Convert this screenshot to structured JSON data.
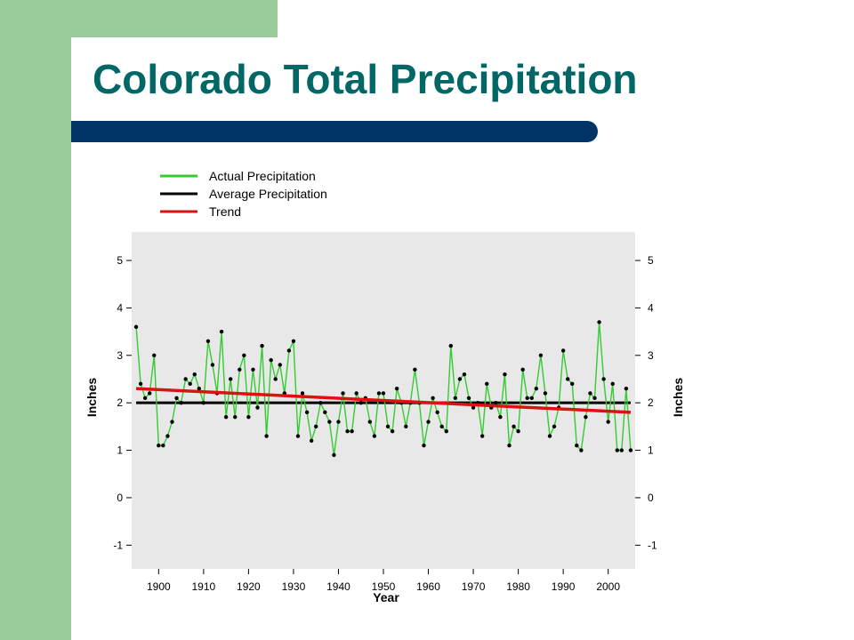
{
  "slide": {
    "title": "Colorado Total Precipitation"
  },
  "colors": {
    "actual": "#33cc33",
    "average": "#000000",
    "trend": "#dd1111",
    "plot_background": "#e8e8e8",
    "title": "#006666",
    "bar": "#003366",
    "side_band": "#99cc99"
  },
  "chart_data": {
    "type": "line",
    "xlabel": "Year",
    "ylabel": "Inches",
    "ylabel_right": "Inches",
    "xlim": [
      1894,
      2006
    ],
    "ylim": [
      -1.5,
      5.6
    ],
    "x_ticks": [
      1900,
      1910,
      1920,
      1930,
      1940,
      1950,
      1960,
      1970,
      1980,
      1990,
      2000
    ],
    "y_ticks": [
      -1,
      0,
      1,
      2,
      3,
      4,
      5
    ],
    "grid": false,
    "legend_position": "top-left",
    "legend": [
      "Actual Precipitation",
      "Average Precipitation",
      "Trend"
    ],
    "series": [
      {
        "name": "Actual Precipitation",
        "x": [
          1895,
          1896,
          1897,
          1898,
          1899,
          1900,
          1901,
          1902,
          1903,
          1904,
          1905,
          1906,
          1907,
          1908,
          1909,
          1910,
          1911,
          1912,
          1913,
          1914,
          1915,
          1916,
          1917,
          1918,
          1919,
          1920,
          1921,
          1922,
          1923,
          1924,
          1925,
          1926,
          1927,
          1928,
          1929,
          1930,
          1931,
          1932,
          1933,
          1934,
          1935,
          1936,
          1937,
          1938,
          1939,
          1940,
          1941,
          1942,
          1943,
          1944,
          1945,
          1946,
          1947,
          1948,
          1949,
          1950,
          1951,
          1952,
          1953,
          1954,
          1955,
          1956,
          1957,
          1958,
          1959,
          1960,
          1961,
          1962,
          1963,
          1964,
          1965,
          1966,
          1967,
          1968,
          1969,
          1970,
          1971,
          1972,
          1973,
          1974,
          1975,
          1976,
          1977,
          1978,
          1979,
          1980,
          1981,
          1982,
          1983,
          1984,
          1985,
          1986,
          1987,
          1988,
          1989,
          1990,
          1991,
          1992,
          1993,
          1994,
          1995,
          1996,
          1997,
          1998,
          1999,
          2000,
          2001,
          2002,
          2003,
          2004,
          2005
        ],
        "values": [
          3.6,
          2.4,
          2.1,
          2.2,
          3.0,
          1.1,
          1.1,
          1.3,
          1.6,
          2.1,
          2.0,
          2.5,
          2.4,
          2.6,
          2.3,
          2.0,
          3.3,
          2.8,
          2.2,
          3.5,
          1.7,
          2.5,
          1.7,
          2.7,
          3.0,
          1.7,
          2.7,
          1.9,
          3.2,
          1.3,
          2.9,
          2.5,
          2.8,
          2.2,
          3.1,
          3.3,
          1.3,
          2.2,
          1.8,
          1.2,
          1.5,
          2.0,
          1.8,
          1.6,
          0.9,
          1.6,
          2.2,
          1.4,
          1.4,
          2.2,
          2.0,
          2.1,
          1.6,
          1.3,
          2.2,
          2.2,
          1.5,
          1.4,
          2.3,
          2.0,
          1.5,
          2.0,
          2.7,
          2.0,
          1.1,
          1.6,
          2.1,
          1.8,
          1.5,
          1.4,
          3.2,
          2.1,
          2.5,
          2.6,
          2.1,
          1.9,
          2.0,
          1.3,
          2.4,
          1.9,
          2.0,
          1.7,
          2.6,
          1.1,
          1.5,
          1.4,
          2.7,
          2.1,
          2.1,
          2.3,
          3.0,
          2.2,
          1.3,
          1.5,
          1.9,
          3.1,
          2.5,
          2.4,
          1.1,
          1.0,
          1.7,
          2.2,
          2.1,
          3.7,
          2.5,
          1.6,
          2.4,
          1.0,
          1.0,
          2.3,
          1.0
        ]
      },
      {
        "name": "Average Precipitation",
        "x": [
          1895,
          2005
        ],
        "values": [
          2.0,
          2.0
        ]
      },
      {
        "name": "Trend",
        "x": [
          1895,
          2005
        ],
        "values": [
          2.3,
          1.8
        ]
      }
    ]
  }
}
